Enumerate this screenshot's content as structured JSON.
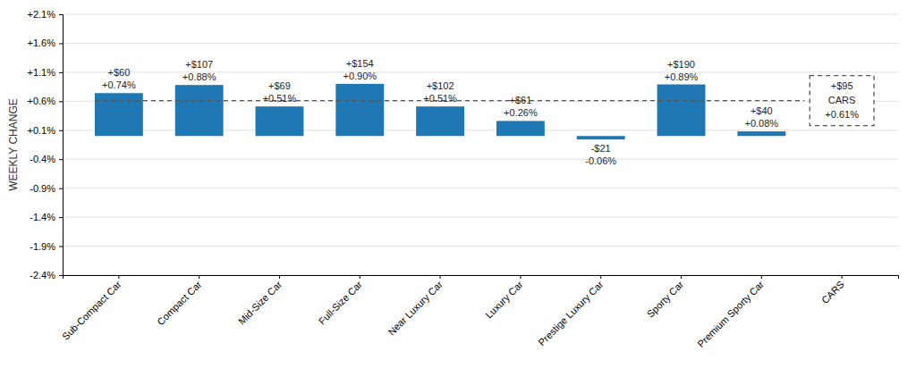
{
  "chart_data": {
    "type": "bar",
    "categories": [
      "Sub-Compact Car",
      "Compact Car",
      "Mid-Size Car",
      "Full-Size Car",
      "Near Luxury Car",
      "Luxury Car",
      "Prestige Luxury Car",
      "Sporty Car",
      "Premium Sporty Car",
      "CARS"
    ],
    "values": [
      0.74,
      0.88,
      0.51,
      0.9,
      0.51,
      0.26,
      -0.06,
      0.89,
      0.08,
      null
    ],
    "value_labels": [
      "+0.74%",
      "+0.88%",
      "+0.51%",
      "+0.90%",
      "+0.51%",
      "+0.26%",
      "-0.06%",
      "+0.89%",
      "+0.08%",
      null
    ],
    "dollar_labels": [
      "+$60",
      "+$107",
      "+$69",
      "+$154",
      "+$102",
      "+$61",
      "-$21",
      "+$190",
      "+$40",
      null
    ],
    "data_labels": true,
    "ylabel": "WEEKLY CHANGE",
    "ylim": [
      -2.4,
      2.1
    ],
    "yticks": [
      {
        "value": 2.1,
        "label": "+2.1%"
      },
      {
        "value": 1.6,
        "label": "+1.6%"
      },
      {
        "value": 1.1,
        "label": "+1.1%"
      },
      {
        "value": 0.6,
        "label": "+0.6%"
      },
      {
        "value": 0.1,
        "label": "+0.1%"
      },
      {
        "value": -0.4,
        "label": "-0.4%"
      },
      {
        "value": -0.9,
        "label": "-0.9%"
      },
      {
        "value": -1.4,
        "label": "-1.4%"
      },
      {
        "value": -1.9,
        "label": "-1.9%"
      },
      {
        "value": -2.4,
        "label": "-2.4%"
      }
    ],
    "grid": true,
    "annotations": [
      {
        "text": "CARS",
        "value": 0.61,
        "value_label": "+0.61%",
        "dollar_label": "+$95",
        "line_style": "dashed"
      }
    ]
  }
}
